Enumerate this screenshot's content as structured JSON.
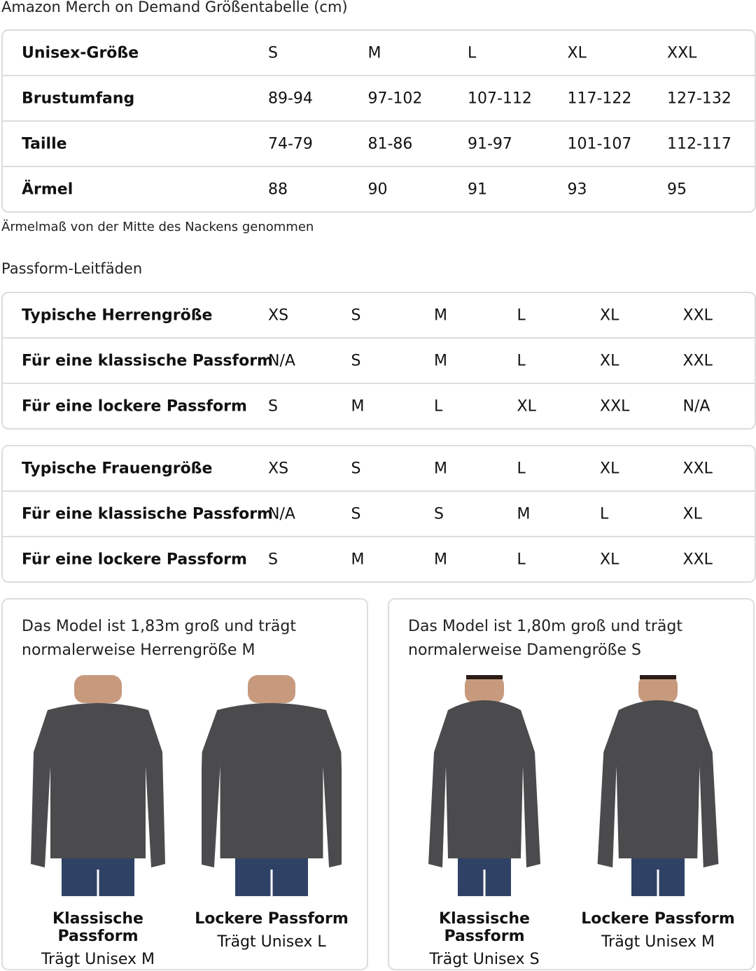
{
  "title": "Amazon Merch on Demand Größentabelle (cm)",
  "size_table": {
    "rows": [
      {
        "label": "Unisex-Größe",
        "values": [
          "S",
          "M",
          "L",
          "XL",
          "XXL"
        ]
      },
      {
        "label": "Brustumfang",
        "values": [
          "89-94",
          "97-102",
          "107-112",
          "117-122",
          "127-132"
        ]
      },
      {
        "label": "Taille",
        "values": [
          "74-79",
          "81-86",
          "91-97",
          "101-107",
          "112-117"
        ]
      },
      {
        "label": "Ärmel",
        "values": [
          "88",
          "90",
          "91",
          "93",
          "95"
        ]
      }
    ]
  },
  "note": "Ärmelmaß von der Mitte des Nackens genommen",
  "fit_heading": "Passform-Leitfäden",
  "men_table": {
    "rows": [
      {
        "label": "Typische Herrengröße",
        "values": [
          "XS",
          "S",
          "M",
          "L",
          "XL",
          "XXL"
        ]
      },
      {
        "label": "Für eine klassische Passform",
        "values": [
          "N/A",
          "S",
          "M",
          "L",
          "XL",
          "XXL"
        ]
      },
      {
        "label": "Für eine lockere Passform",
        "values": [
          "S",
          "M",
          "L",
          "XL",
          "XXL",
          "N/A"
        ]
      }
    ]
  },
  "women_table": {
    "rows": [
      {
        "label": "Typische Frauengröße",
        "values": [
          "XS",
          "S",
          "M",
          "L",
          "XL",
          "XXL"
        ]
      },
      {
        "label": "Für eine klassische Passform",
        "values": [
          "N/A",
          "S",
          "S",
          "M",
          "L",
          "XL"
        ]
      },
      {
        "label": "Für eine lockere Passform",
        "values": [
          "S",
          "M",
          "M",
          "L",
          "XL",
          "XXL"
        ]
      }
    ]
  },
  "cards": [
    {
      "text_line1": "Das Model ist 1,83m groß und trägt",
      "text_line2": "normalerweise Herrengröße M",
      "models": [
        {
          "fit": "Klassische Passform",
          "wears": "Trägt Unisex M"
        },
        {
          "fit": "Lockere Passform",
          "wears": "Trägt Unisex L"
        }
      ]
    },
    {
      "text_line1": "Das Model ist 1,80m groß und trägt",
      "text_line2": "normalerweise Damengröße S",
      "models": [
        {
          "fit": "Klassische Passform",
          "wears": "Trägt Unisex S"
        },
        {
          "fit": "Lockere Passform",
          "wears": "Trägt Unisex M"
        }
      ]
    }
  ],
  "colors": {
    "shirt": "#4b4b4d",
    "jeans": "#2f4266",
    "border": "#dddddd"
  }
}
